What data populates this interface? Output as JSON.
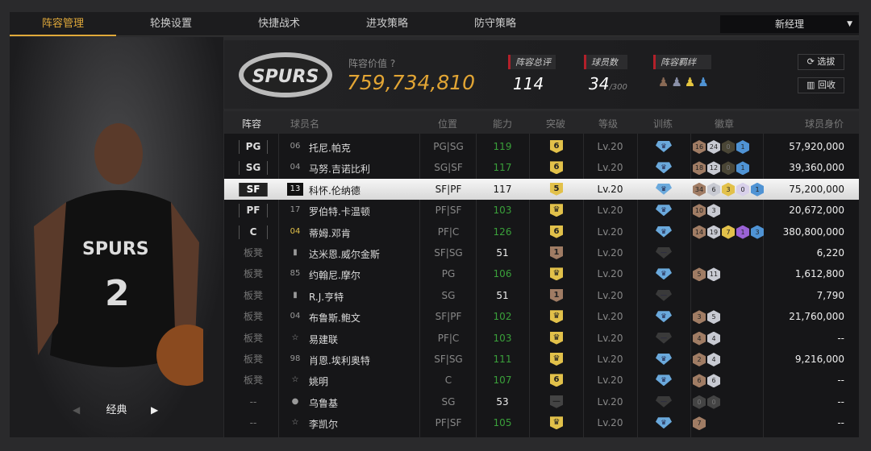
{
  "tabs": [
    "阵容管理",
    "轮换设置",
    "快捷战术",
    "进攻策略",
    "防守策略"
  ],
  "manager_select": "新经理",
  "left_panel": {
    "style_label": "经典",
    "card_number": "2",
    "jersey_text": "SPURS"
  },
  "header": {
    "logo_text": "SPURS",
    "value_label": "阵容价值",
    "value": "759,734,810",
    "rating_label": "阵容总评",
    "rating": "114",
    "players_label": "球员数",
    "players": "34",
    "players_max": "/300",
    "bond_label": "阵容羁绊",
    "bond_colors": [
      "#8a6a55",
      "#8a90a8",
      "#e6c640",
      "#4f93d4"
    ],
    "select_btn": "选拔",
    "recycle_btn": "回收"
  },
  "columns": [
    "阵容",
    "球员名",
    "位置",
    "能力",
    "突破",
    "等级",
    "训练",
    "徽章",
    "球员身价"
  ],
  "colors": {
    "accent": "#e0a93a",
    "green": "#3aa03a",
    "bronze": "#a07c64",
    "silver": "#c8cad2",
    "gold": "#e2c14a",
    "purple": "#9a62d6",
    "blue": "#4f93d4",
    "dark": "#4a4636",
    "lavender": "#d8d0ea",
    "gray": "#444"
  },
  "rows": [
    {
      "slot": "PG",
      "num": "06",
      "name": "托尼.帕克",
      "pos": "PG|SG",
      "abil": "119",
      "brk": "6",
      "lv": "Lv.20",
      "trn": "blue",
      "badges": [
        [
          "16",
          "bronze"
        ],
        [
          "24",
          "silver"
        ],
        [
          "0",
          "dark"
        ],
        [
          "1",
          "blue"
        ]
      ],
      "price": "57,920,000"
    },
    {
      "slot": "SG",
      "num": "04",
      "name": "马努.吉诺比利",
      "pos": "SG|SF",
      "abil": "117",
      "brk": "6",
      "lv": "Lv.20",
      "trn": "blue",
      "badges": [
        [
          "18",
          "bronze"
        ],
        [
          "12",
          "silver"
        ],
        [
          "0",
          "dark"
        ],
        [
          "1",
          "blue"
        ]
      ],
      "price": "39,360,000"
    },
    {
      "slot": "SF",
      "num": "13",
      "name": "科怀.伦纳德",
      "pos": "SF|PF",
      "abil": "117",
      "brk": "5",
      "lv": "Lv.20",
      "trn": "blue",
      "badges": [
        [
          "34",
          "bronze"
        ],
        [
          "6",
          "silver"
        ],
        [
          "3",
          "gold"
        ],
        [
          "0",
          "lavender"
        ],
        [
          "1",
          "blue"
        ]
      ],
      "price": "75,200,000",
      "selected": true
    },
    {
      "slot": "PF",
      "num": "17",
      "name": "罗伯特.卡温顿",
      "pos": "PF|SF",
      "abil": "103",
      "brk": "crown",
      "lv": "Lv.20",
      "trn": "blue",
      "badges": [
        [
          "10",
          "bronze"
        ],
        [
          "3",
          "silver"
        ]
      ],
      "price": "20,672,000"
    },
    {
      "slot": "C",
      "num": "04",
      "name": "蒂姆.邓肯",
      "pos": "PF|C",
      "abil": "126",
      "brk": "6",
      "lv": "Lv.20",
      "trn": "blue",
      "badges": [
        [
          "14",
          "bronze"
        ],
        [
          "19",
          "silver"
        ],
        [
          "7",
          "gold"
        ],
        [
          "1",
          "purple"
        ],
        [
          "3",
          "blue"
        ]
      ],
      "price": "380,800,000"
    },
    {
      "slot": "板凳",
      "num": "bars",
      "name": "达米恩.威尔金斯",
      "pos": "SF|SG",
      "abil": "51",
      "brk": "1",
      "lv": "Lv.20",
      "trn": "gray",
      "badges": [],
      "price": "6,220"
    },
    {
      "slot": "板凳",
      "num": "85",
      "name": "约翰尼.摩尔",
      "pos": "PG",
      "abil": "106",
      "brk": "crown",
      "lv": "Lv.20",
      "trn": "blue",
      "badges": [
        [
          "5",
          "bronze"
        ],
        [
          "11",
          "silver"
        ]
      ],
      "price": "1,612,800"
    },
    {
      "slot": "板凳",
      "num": "bars",
      "name": "R.J.亨特",
      "pos": "SG",
      "abil": "51",
      "brk": "1",
      "lv": "Lv.20",
      "trn": "gray",
      "badges": [],
      "price": "7,790"
    },
    {
      "slot": "板凳",
      "num": "04",
      "name": "布鲁斯.鲍文",
      "pos": "SF|PF",
      "abil": "102",
      "brk": "crown",
      "lv": "Lv.20",
      "trn": "blue",
      "badges": [
        [
          "3",
          "bronze"
        ],
        [
          "5",
          "silver"
        ]
      ],
      "price": "21,760,000"
    },
    {
      "slot": "板凳",
      "num": "star",
      "name": "易建联",
      "pos": "PF|C",
      "abil": "103",
      "brk": "crown",
      "lv": "Lv.20",
      "trn": "gray",
      "badges": [
        [
          "4",
          "bronze"
        ],
        [
          "4",
          "silver"
        ]
      ],
      "price": "--"
    },
    {
      "slot": "板凳",
      "num": "98",
      "name": "肖恩.埃利奥特",
      "pos": "SF|SG",
      "abil": "111",
      "brk": "crown",
      "lv": "Lv.20",
      "trn": "blue",
      "badges": [
        [
          "2",
          "bronze"
        ],
        [
          "4",
          "silver"
        ]
      ],
      "price": "9,216,000"
    },
    {
      "slot": "板凳",
      "num": "star",
      "name": "姚明",
      "pos": "C",
      "abil": "107",
      "brk": "6",
      "lv": "Lv.20",
      "trn": "blue",
      "badges": [
        [
          "6",
          "bronze"
        ],
        [
          "6",
          "silver"
        ]
      ],
      "price": "--"
    },
    {
      "slot": "--",
      "num": "person",
      "name": "乌鲁基",
      "pos": "SG",
      "abil": "53",
      "brk": "none",
      "lv": "Lv.20",
      "trn": "gray",
      "badges": [
        [
          "0",
          "gray"
        ],
        [
          "0",
          "gray"
        ]
      ],
      "price": "--"
    },
    {
      "slot": "--",
      "num": "star",
      "name": "李凯尔",
      "pos": "PF|SF",
      "abil": "105",
      "brk": "crown",
      "lv": "Lv.20",
      "trn": "blue",
      "badges": [
        [
          "7",
          "bronze"
        ]
      ],
      "price": "--"
    }
  ]
}
